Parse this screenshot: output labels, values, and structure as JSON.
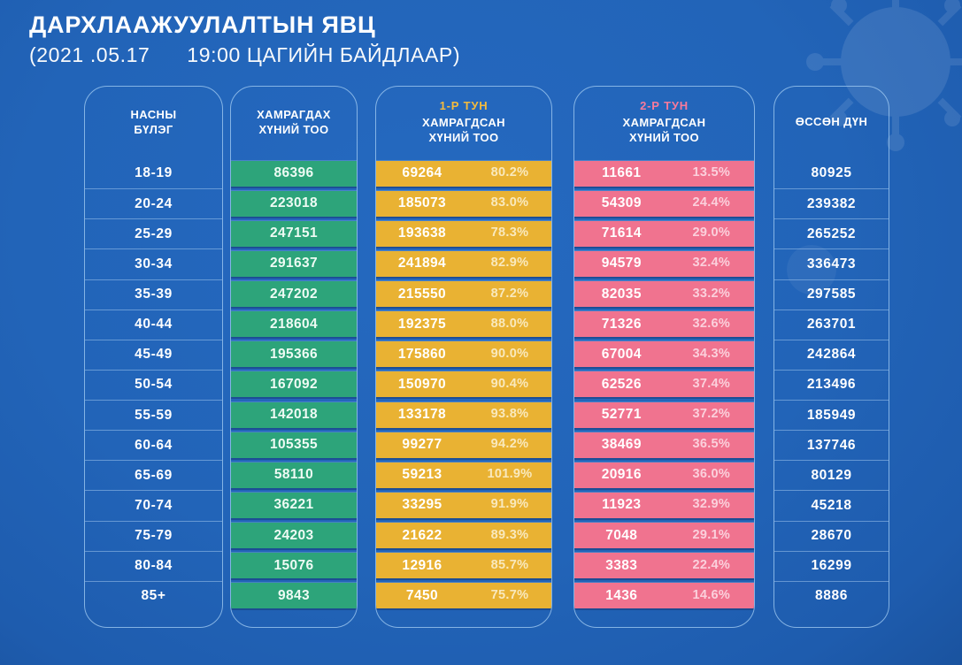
{
  "title": "ДАРХЛААЖУУЛАЛТЫН ЯВЦ",
  "subtitle": "(2021 .05.17      19:00 ЦАГИЙН БАЙДЛААР)",
  "colors": {
    "background": "#2264b8",
    "card_border": "#9ec8f0",
    "green": "#2da47a",
    "yellow": "#e9b233",
    "pink": "#f0738f",
    "dose1_tag": "#f5bb3d",
    "dose2_tag": "#f87a9b"
  },
  "icons": {
    "watermark": "coronavirus-icon"
  },
  "table": {
    "columns": [
      {
        "id": "age",
        "header_lines": [
          "НАСНЫ",
          "БҮЛЭГ"
        ]
      },
      {
        "id": "target",
        "header_lines": [
          "ХАМРАГДАХ",
          "ХҮНИЙ ТОО"
        ]
      },
      {
        "id": "dose1",
        "header_tag": "1-Р ТУН",
        "header_lines": [
          "ХАМРАГДСАН",
          "ХҮНИЙ ТОО"
        ]
      },
      {
        "id": "dose2",
        "header_tag": "2-Р ТУН",
        "header_lines": [
          "ХАМРАГДСАН",
          "ХҮНИЙ ТОО"
        ]
      },
      {
        "id": "total",
        "header_lines": [
          "ӨССӨН ДҮН"
        ]
      }
    ],
    "rows": [
      {
        "age": "18-19",
        "target": "86396",
        "dose1": "69264",
        "dose1_pct": "80.2%",
        "dose2": "11661",
        "dose2_pct": "13.5%",
        "total": "80925"
      },
      {
        "age": "20-24",
        "target": "223018",
        "dose1": "185073",
        "dose1_pct": "83.0%",
        "dose2": "54309",
        "dose2_pct": "24.4%",
        "total": "239382"
      },
      {
        "age": "25-29",
        "target": "247151",
        "dose1": "193638",
        "dose1_pct": "78.3%",
        "dose2": "71614",
        "dose2_pct": "29.0%",
        "total": "265252"
      },
      {
        "age": "30-34",
        "target": "291637",
        "dose1": "241894",
        "dose1_pct": "82.9%",
        "dose2": "94579",
        "dose2_pct": "32.4%",
        "total": "336473"
      },
      {
        "age": "35-39",
        "target": "247202",
        "dose1": "215550",
        "dose1_pct": "87.2%",
        "dose2": "82035",
        "dose2_pct": "33.2%",
        "total": "297585"
      },
      {
        "age": "40-44",
        "target": "218604",
        "dose1": "192375",
        "dose1_pct": "88.0%",
        "dose2": "71326",
        "dose2_pct": "32.6%",
        "total": "263701"
      },
      {
        "age": "45-49",
        "target": "195366",
        "dose1": "175860",
        "dose1_pct": "90.0%",
        "dose2": "67004",
        "dose2_pct": "34.3%",
        "total": "242864"
      },
      {
        "age": "50-54",
        "target": "167092",
        "dose1": "150970",
        "dose1_pct": "90.4%",
        "dose2": "62526",
        "dose2_pct": "37.4%",
        "total": "213496"
      },
      {
        "age": "55-59",
        "target": "142018",
        "dose1": "133178",
        "dose1_pct": "93.8%",
        "dose2": "52771",
        "dose2_pct": "37.2%",
        "total": "185949"
      },
      {
        "age": "60-64",
        "target": "105355",
        "dose1": "99277",
        "dose1_pct": "94.2%",
        "dose2": "38469",
        "dose2_pct": "36.5%",
        "total": "137746"
      },
      {
        "age": "65-69",
        "target": "58110",
        "dose1": "59213",
        "dose1_pct": "101.9%",
        "dose2": "20916",
        "dose2_pct": "36.0%",
        "total": "80129"
      },
      {
        "age": "70-74",
        "target": "36221",
        "dose1": "33295",
        "dose1_pct": "91.9%",
        "dose2": "11923",
        "dose2_pct": "32.9%",
        "total": "45218"
      },
      {
        "age": "75-79",
        "target": "24203",
        "dose1": "21622",
        "dose1_pct": "89.3%",
        "dose2": "7048",
        "dose2_pct": "29.1%",
        "total": "28670"
      },
      {
        "age": "80-84",
        "target": "15076",
        "dose1": "12916",
        "dose1_pct": "85.7%",
        "dose2": "3383",
        "dose2_pct": "22.4%",
        "total": "16299"
      },
      {
        "age": "85+",
        "target": "9843",
        "dose1": "7450",
        "dose1_pct": "75.7%",
        "dose2": "1436",
        "dose2_pct": "14.6%",
        "total": "8886"
      }
    ]
  }
}
